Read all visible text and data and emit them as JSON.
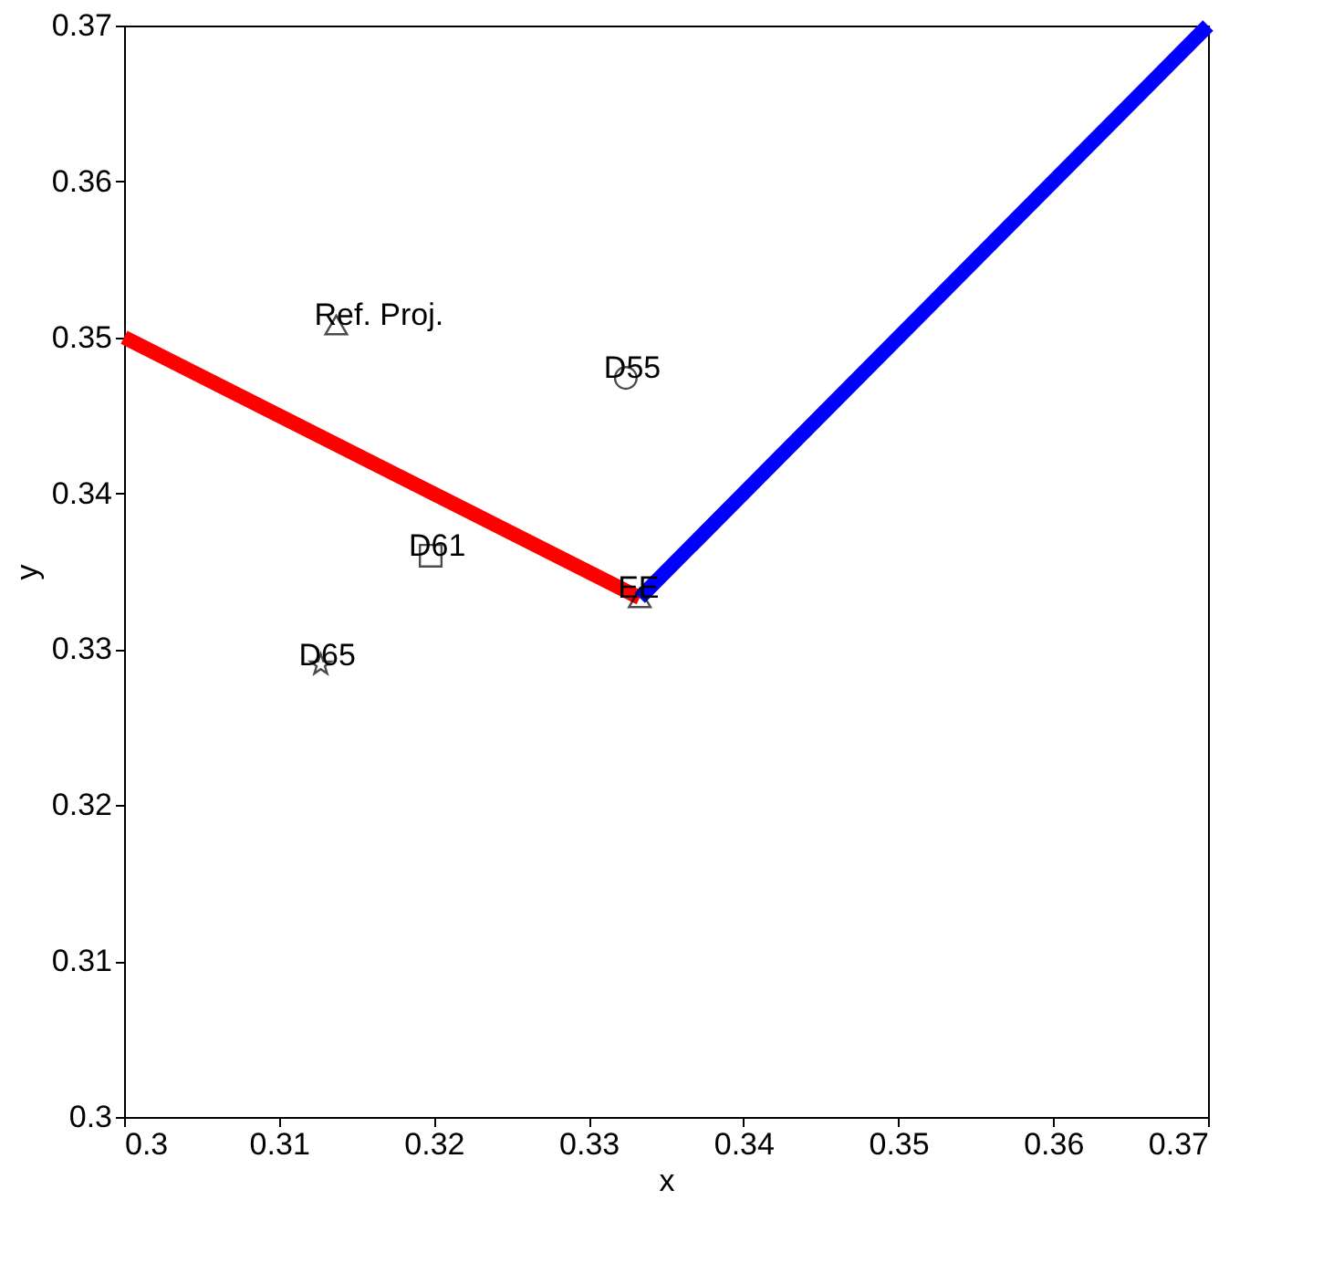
{
  "chart_data": {
    "type": "line",
    "xlabel": "x",
    "ylabel": "y",
    "xlim": [
      0.3,
      0.37
    ],
    "ylim": [
      0.3,
      0.37
    ],
    "xticks": [
      0.3,
      0.31,
      0.32,
      0.33,
      0.34,
      0.35,
      0.36,
      0.37
    ],
    "yticks": [
      0.3,
      0.31,
      0.32,
      0.33,
      0.34,
      0.35,
      0.36,
      0.37
    ],
    "grid": false,
    "series": [
      {
        "color": "#ff0000",
        "x": [
          0.3,
          0.3333
        ],
        "values": [
          0.35,
          0.3333
        ]
      },
      {
        "color": "#0000ff",
        "x": [
          0.3333,
          0.37
        ],
        "values": [
          0.3333,
          0.37
        ]
      },
      {
        "type": "scatter",
        "name": "Ref. Proj.",
        "color": "#000000",
        "marker": "triangle",
        "x": [
          0.3137
        ],
        "values": [
          0.3508
        ]
      },
      {
        "type": "scatter",
        "name": "D55",
        "color": "#000000",
        "marker": "circle",
        "x": [
          0.3324
        ],
        "values": [
          0.3474
        ]
      },
      {
        "type": "scatter",
        "name": "D61",
        "color": "#000000",
        "marker": "square",
        "x": [
          0.3198
        ],
        "values": [
          0.336
        ]
      },
      {
        "type": "scatter",
        "name": "D65",
        "color": "#000000",
        "marker": "star",
        "x": [
          0.3127
        ],
        "values": [
          0.329
        ]
      },
      {
        "type": "scatter",
        "name": "EE",
        "color": "#000000",
        "marker": "triangle",
        "x": [
          0.3333
        ],
        "values": [
          0.3333
        ]
      }
    ]
  }
}
